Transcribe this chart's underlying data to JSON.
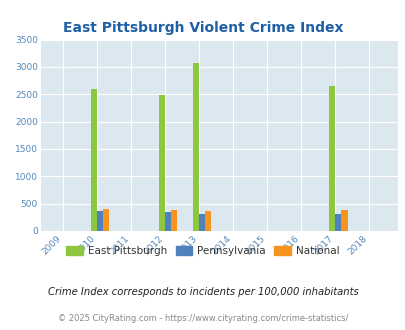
{
  "title": "East Pittsburgh Violent Crime Index",
  "years": [
    2009,
    2010,
    2011,
    2012,
    2013,
    2014,
    2015,
    2016,
    2017,
    2018
  ],
  "east_pittsburgh": [
    0,
    2600,
    0,
    2480,
    3080,
    0,
    0,
    0,
    2650,
    0
  ],
  "pennsylvania": [
    0,
    370,
    0,
    345,
    320,
    0,
    0,
    0,
    310,
    0
  ],
  "national": [
    0,
    400,
    0,
    385,
    365,
    0,
    0,
    0,
    385,
    0
  ],
  "color_ep": "#8dc63f",
  "color_pa": "#4f81bd",
  "color_nat": "#f7941d",
  "bg_color": "#dce8ef",
  "grid_color": "#ffffff",
  "ylim": [
    0,
    3500
  ],
  "yticks": [
    0,
    500,
    1000,
    1500,
    2000,
    2500,
    3000,
    3500
  ],
  "title_color": "#1f5fa6",
  "tick_color": "#5588bb",
  "legend_labels": [
    "East Pittsburgh",
    "Pennsylvania",
    "National"
  ],
  "note": "Crime Index corresponds to incidents per 100,000 inhabitants",
  "footer": "© 2025 CityRating.com - https://www.cityrating.com/crime-statistics/",
  "bar_width": 0.18
}
